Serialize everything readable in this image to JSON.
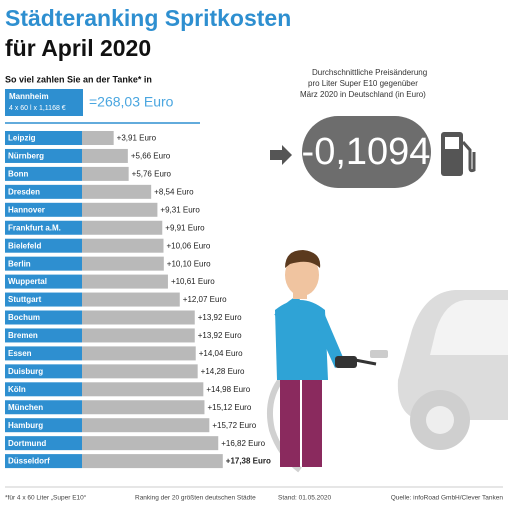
{
  "chart_data": {
    "type": "bar",
    "title": [
      "Städteranking Spritkosten",
      "für April 2020"
    ],
    "subtitle": "So viel zahlen Sie an der Tanke* in",
    "reference": {
      "name": "Mannheim",
      "detail": "4 x 60 l x 1,1168 €",
      "value": 268.03,
      "value_label": "=268,03 Euro"
    },
    "note": [
      "Durchschnittliche Preisänderung",
      "pro Liter Super E10 gegenüber",
      "März 2020 in Deutschland (in Euro)"
    ],
    "change": {
      "value": -0.1094,
      "label": "-0,1094"
    },
    "categories": [
      "Leipzig",
      "Nürnberg",
      "Bonn",
      "Dresden",
      "Hannover",
      "Frankfurt a.M.",
      "Bielefeld",
      "Berlin",
      "Wuppertal",
      "Stuttgart",
      "Bochum",
      "Bremen",
      "Essen",
      "Duisburg",
      "Köln",
      "München",
      "Hamburg",
      "Dortmund",
      "Düsseldorf"
    ],
    "values": [
      3.91,
      5.66,
      5.76,
      8.54,
      9.31,
      9.91,
      10.06,
      10.1,
      10.61,
      12.07,
      13.92,
      13.92,
      14.04,
      14.28,
      14.98,
      15.12,
      15.72,
      16.82,
      17.38
    ],
    "value_labels": [
      "+3,91 Euro",
      "+5,66 Euro",
      "+5,76 Euro",
      "+8,54 Euro",
      "+9,31 Euro",
      "+9,91 Euro",
      "+10,06 Euro",
      "+10,10 Euro",
      "+10,61 Euro",
      "+12,07 Euro",
      "+13,92 Euro",
      "+13,92 Euro",
      "+14,04 Euro",
      "+14,28 Euro",
      "+14,98 Euro",
      "+15,12 Euro",
      "+15,72 Euro",
      "+16,82 Euro",
      "+17,38 Euro"
    ],
    "label_color": "#2e8fd0",
    "color": "#b9b9b9",
    "footer": [
      "*für 4 x 60 Liter „Super E10“",
      "Ranking der 20 größten deutschen Städte",
      "Stand: 01.05.2020",
      "Quelle: infoRoad GmbH/Clever Tanken"
    ]
  }
}
